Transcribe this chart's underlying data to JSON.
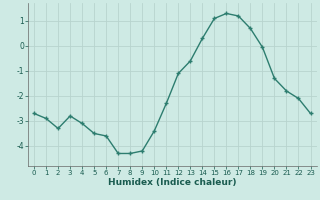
{
  "x": [
    0,
    1,
    2,
    3,
    4,
    5,
    6,
    7,
    8,
    9,
    10,
    11,
    12,
    13,
    14,
    15,
    16,
    17,
    18,
    19,
    20,
    21,
    22,
    23
  ],
  "y": [
    -2.7,
    -2.9,
    -3.3,
    -2.8,
    -3.1,
    -3.5,
    -3.6,
    -4.3,
    -4.3,
    -4.2,
    -3.4,
    -2.3,
    -1.1,
    -0.6,
    0.3,
    1.1,
    1.3,
    1.2,
    0.7,
    -0.05,
    -1.3,
    -1.8,
    -2.1,
    -2.7
  ],
  "xlim": [
    -0.5,
    23.5
  ],
  "ylim": [
    -4.8,
    1.7
  ],
  "yticks": [
    1,
    0,
    -1,
    -2,
    -3,
    -4
  ],
  "xticks": [
    0,
    1,
    2,
    3,
    4,
    5,
    6,
    7,
    8,
    9,
    10,
    11,
    12,
    13,
    14,
    15,
    16,
    17,
    18,
    19,
    20,
    21,
    22,
    23
  ],
  "xlabel": "Humidex (Indice chaleur)",
  "line_color": "#2d7d6f",
  "bg_color": "#ceeae4",
  "grid_color": "#b8d4ce",
  "axis_color": "#666666",
  "text_color": "#1a5c50",
  "marker": "+",
  "marker_size": 3.5,
  "line_width": 1.0
}
